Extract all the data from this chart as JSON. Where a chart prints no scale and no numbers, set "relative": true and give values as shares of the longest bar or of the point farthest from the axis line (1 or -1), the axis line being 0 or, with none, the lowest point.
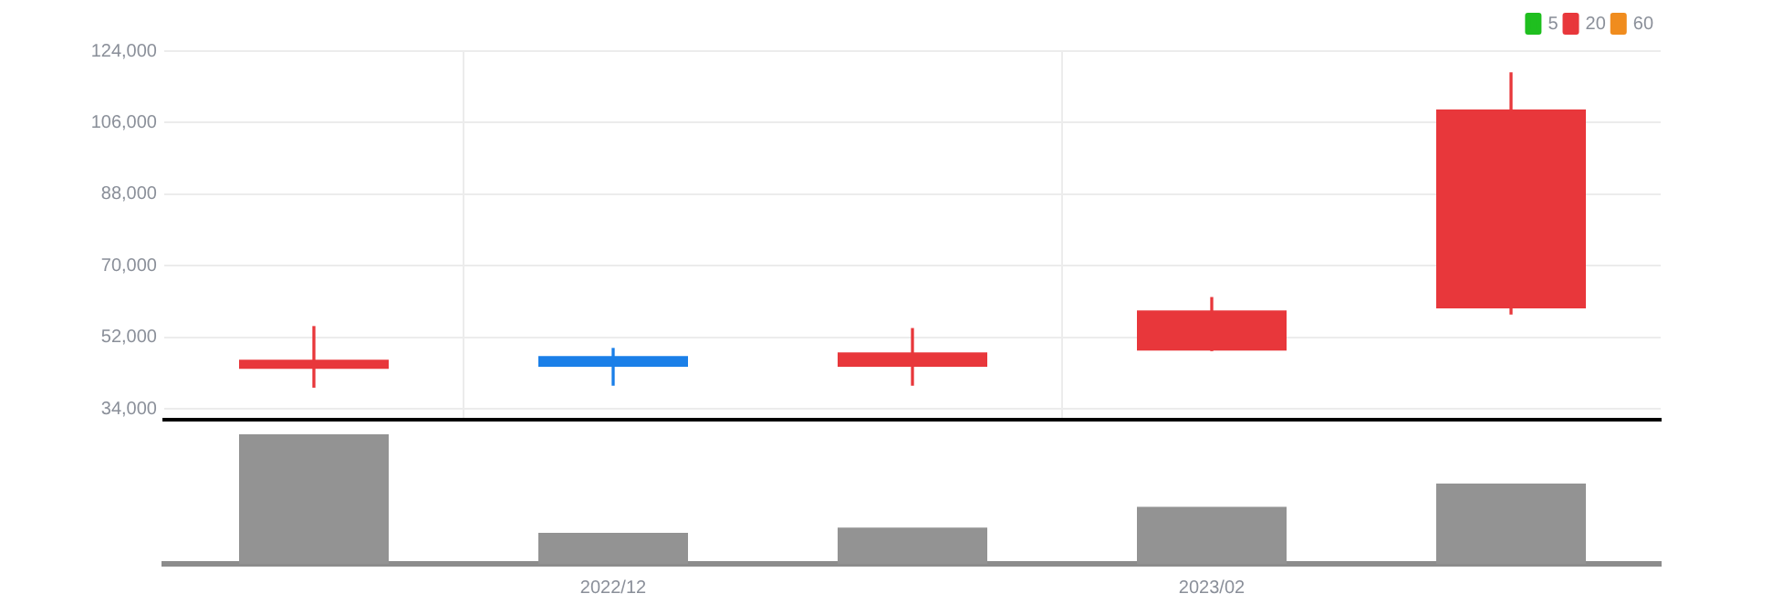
{
  "chart_data": [
    {
      "type": "candlestick",
      "categories": [
        null,
        "2022/12",
        null,
        "2023/02",
        null
      ],
      "ohlc": [
        [
          44100,
          54700,
          39500,
          46400
        ],
        [
          47300,
          49200,
          40000,
          44600
        ],
        [
          44600,
          54200,
          40000,
          48200
        ],
        [
          48700,
          62000,
          48700,
          58800
        ],
        [
          59300,
          118500,
          57900,
          109300
        ]
      ],
      "colors": [
        "#e8373b",
        "#1a7fe8",
        "#e8373b",
        "#e8373b",
        "#e8373b"
      ],
      "series": [
        {
          "name": "5",
          "type": "line",
          "color": "#1fbf1f",
          "values": [
            null,
            null,
            null,
            null,
            null
          ]
        },
        {
          "name": "20",
          "type": "line",
          "color": "#e8373b",
          "values": [
            null,
            null,
            null,
            null,
            null
          ]
        },
        {
          "name": "60",
          "type": "line",
          "color": "#f08c1e",
          "values": [
            null,
            null,
            null,
            null,
            null
          ]
        }
      ],
      "ylim": [
        31300,
        124000
      ],
      "yticks": [
        {
          "value": 34000,
          "label": "34,000"
        },
        {
          "value": 52000,
          "label": "52,000"
        },
        {
          "value": 70000,
          "label": "70,000"
        },
        {
          "value": 88000,
          "label": "88,000"
        },
        {
          "value": 106000,
          "label": "106,000"
        },
        {
          "value": 124000,
          "label": "124,000"
        }
      ],
      "grid": true,
      "legend": "top right",
      "tick_labels": "y"
    },
    {
      "type": "bar",
      "categories": [
        null,
        "2022/12",
        null,
        "2023/02",
        null
      ],
      "values": [
        1,
        0.24,
        0.28,
        0.44,
        0.62
      ],
      "color": "#939393",
      "relative": true,
      "grid": false,
      "tick_labels": "x"
    }
  ]
}
